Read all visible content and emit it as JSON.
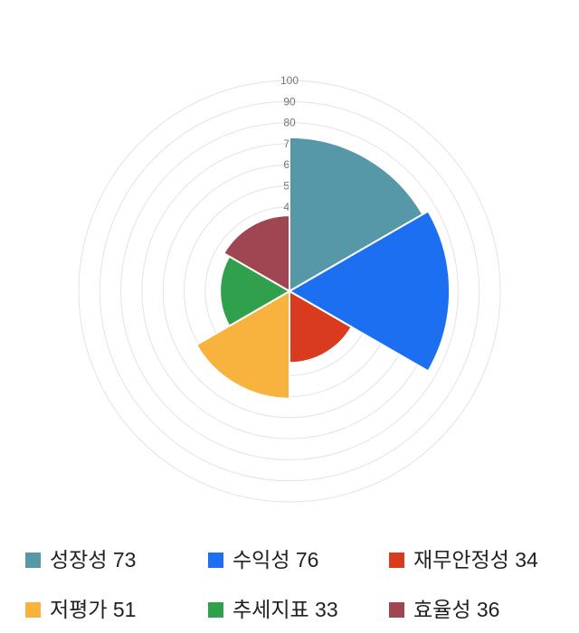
{
  "chart_data": {
    "type": "polar_area",
    "title": "",
    "categories": [
      "성장성",
      "수익성",
      "재무안정성",
      "저평가",
      "추세지표",
      "효율성"
    ],
    "values": [
      73,
      76,
      34,
      51,
      33,
      36
    ],
    "colors": [
      "#5697a8",
      "#1d6ff2",
      "#d93b1e",
      "#f7b33d",
      "#30a04c",
      "#a04552"
    ],
    "legend_labels": [
      "성장성 73",
      "수익성 76",
      "재무안정성 34",
      "저평가 51",
      "추세지표 33",
      "효율성 36"
    ],
    "radial_ticks": [
      40,
      50,
      60,
      70,
      80,
      90,
      100
    ],
    "rlim": [
      0,
      100
    ],
    "grid": true,
    "grid_step": 10,
    "start_angle_deg": 0,
    "direction": "clockwise",
    "legend_position": "bottom",
    "grid_color": "#e3e3e3",
    "tick_color": "#757575",
    "wedge_stroke_color": "#ffffff",
    "background_color": "#ffffff"
  }
}
